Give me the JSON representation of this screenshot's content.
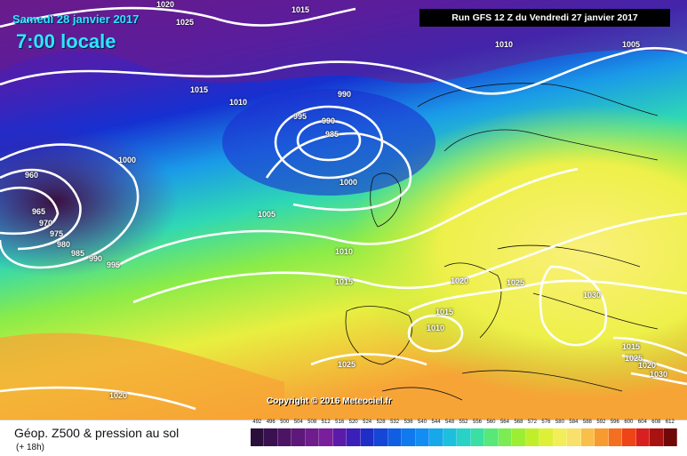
{
  "header": {
    "date_title": "Samedi 28 janvier 2017",
    "local_time": "7:00 locale",
    "run_info": "Run GFS 12 Z du Vendredi 27 janvier 2017"
  },
  "map": {
    "copyright": "Copyright © 2016 Meteociel.fr",
    "isobar_labels": [
      "1020",
      "1025",
      "1015",
      "1010",
      "1015",
      "1010",
      "1005",
      "990",
      "995",
      "990",
      "985",
      "1000",
      "1000",
      "960",
      "965",
      "970",
      "975",
      "980",
      "985",
      "990",
      "995",
      "1005",
      "1010",
      "1015",
      "1020",
      "1025",
      "1015",
      "1010",
      "1030",
      "1025",
      "1020",
      "1015",
      "1025",
      "1020",
      "1030"
    ]
  },
  "legend": {
    "title": "Géop. Z500 & pression au sol",
    "subtitle": "(+ 18h)",
    "scale_values": [
      "492",
      "496",
      "500",
      "504",
      "508",
      "512",
      "516",
      "520",
      "524",
      "528",
      "532",
      "536",
      "540",
      "544",
      "548",
      "552",
      "556",
      "560",
      "564",
      "568",
      "572",
      "576",
      "580",
      "584",
      "588",
      "592",
      "596",
      "600",
      "604",
      "608",
      "612"
    ],
    "scale_colors": [
      "#2a0f3a",
      "#3a1150",
      "#4d1466",
      "#5e187a",
      "#6e1d8c",
      "#7a1f9c",
      "#5a1ca8",
      "#3a20b8",
      "#1f2ec6",
      "#1546d6",
      "#105fe2",
      "#0f79ee",
      "#128ef2",
      "#17a8ea",
      "#1dc0dc",
      "#28d2c4",
      "#3ae0a2",
      "#58e878",
      "#7cec52",
      "#9cee34",
      "#c0ef2a",
      "#deef38",
      "#f2ee5a",
      "#f9e06a",
      "#f8c04a",
      "#f79a30",
      "#f47020",
      "#ee4418",
      "#d82020",
      "#a81210",
      "#700808"
    ]
  }
}
